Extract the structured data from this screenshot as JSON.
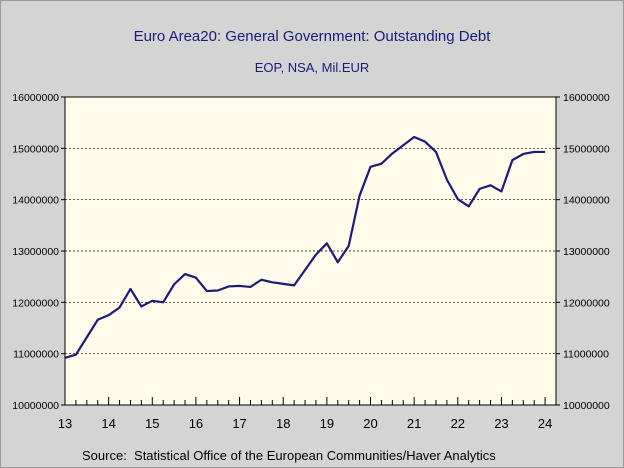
{
  "chart_data": {
    "type": "line",
    "title": "Euro Area20: General Government: Outstanding Debt",
    "subtitle": "EOP, NSA, Mil.EUR",
    "source": "Source:  Statistical Office of the European Communities/Haver Analytics",
    "xlim": [
      2013.0,
      2024.25
    ],
    "ylim": [
      10000000,
      16000000
    ],
    "x_ticks": [
      2013,
      2014,
      2015,
      2016,
      2017,
      2018,
      2019,
      2020,
      2021,
      2022,
      2023,
      2024
    ],
    "x_tick_labels": [
      "13",
      "14",
      "15",
      "16",
      "17",
      "18",
      "19",
      "20",
      "21",
      "22",
      "23",
      "24"
    ],
    "y_ticks": [
      10000000,
      11000000,
      12000000,
      13000000,
      14000000,
      15000000,
      16000000
    ],
    "y_tick_labels": [
      "10000000",
      "11000000",
      "12000000",
      "13000000",
      "14000000",
      "15000000",
      "16000000"
    ],
    "grid": "horizontal dashed",
    "colors": {
      "line": "#1c1c78",
      "plot_bg": "#fffbea",
      "background": "#d4d4d4",
      "title": "#1a1a7a"
    },
    "series": [
      {
        "x": [
          2013.0,
          2013.25,
          2013.5,
          2013.75,
          2014.0,
          2014.25,
          2014.5,
          2014.75,
          2015.0,
          2015.25,
          2015.5,
          2015.75,
          2016.0,
          2016.25,
          2016.5,
          2016.75,
          2017.0,
          2017.25,
          2017.5,
          2017.75,
          2018.0,
          2018.25,
          2018.5,
          2018.75,
          2019.0,
          2019.25,
          2019.5,
          2019.75,
          2020.0,
          2020.25,
          2020.5,
          2020.75,
          2021.0,
          2021.25,
          2021.5,
          2021.75,
          2022.0,
          2022.25,
          2022.5,
          2022.75,
          2023.0,
          2023.25,
          2023.5,
          2023.75,
          2024.0
        ],
        "values": [
          10920000,
          10980000,
          11320000,
          11660000,
          11750000,
          11900000,
          12260000,
          11920000,
          12030000,
          12000000,
          12350000,
          12550000,
          12480000,
          12220000,
          12230000,
          12310000,
          12320000,
          12300000,
          12440000,
          12390000,
          12360000,
          12330000,
          12630000,
          12930000,
          13150000,
          12780000,
          13100000,
          14080000,
          14640000,
          14700000,
          14900000,
          15060000,
          15220000,
          15130000,
          14930000,
          14390000,
          14010000,
          13870000,
          14210000,
          14280000,
          14160000,
          14770000,
          14890000,
          14930000,
          14930000
        ]
      }
    ]
  }
}
